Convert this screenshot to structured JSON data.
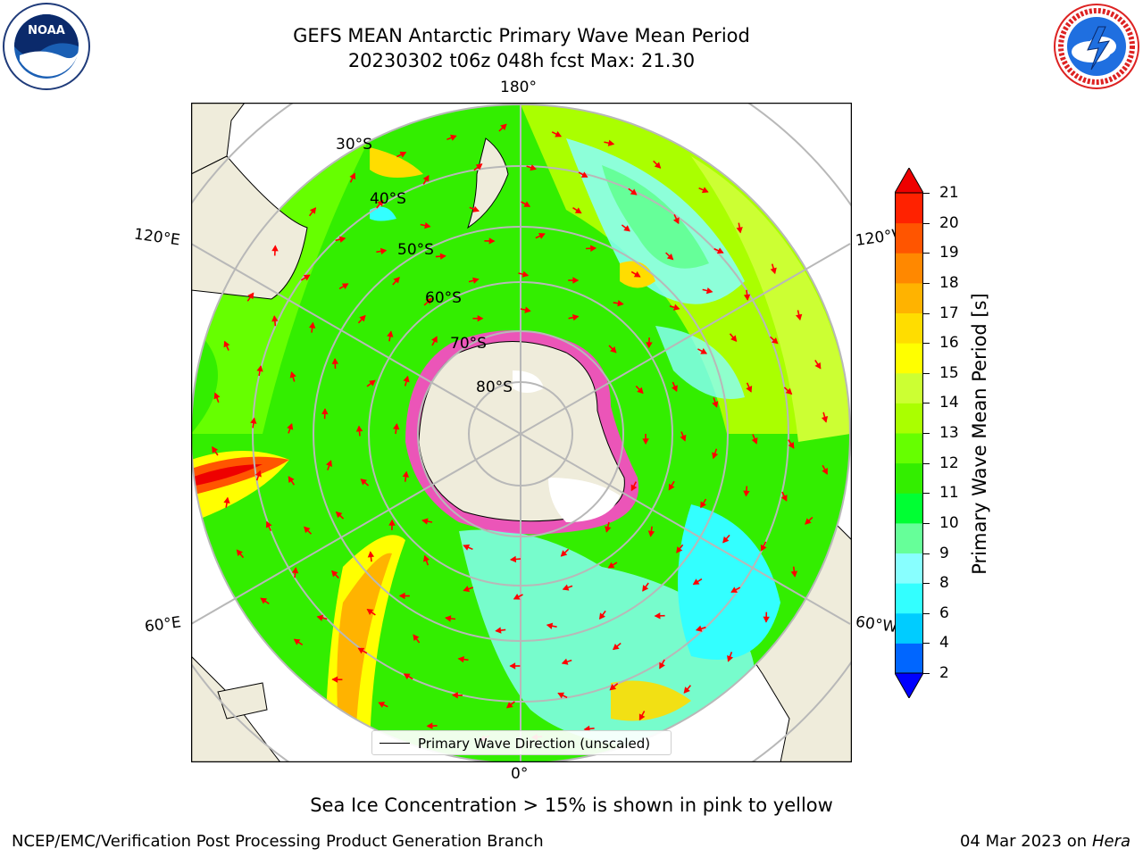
{
  "title": {
    "line1": "GEFS MEAN Antarctic Primary Wave Mean Period",
    "line2": "20230302 t06z 048h fcst   Max: 21.30"
  },
  "logos": {
    "left": {
      "name": "noaa-logo",
      "text": "NOAA",
      "ring_text": "NATIONAL OCEANIC AND ATMOSPHERIC ADMINISTRATION · U.S. DEPARTMENT OF COMMERCE"
    },
    "right": {
      "name": "nws-logo",
      "ring_text": "NATIONAL WEATHER SERVICE"
    }
  },
  "map": {
    "projection": "south-polar-stereographic",
    "longitude_labels": {
      "top": "180°",
      "bottom": "0°",
      "upper_left": "120°E",
      "upper_right": "120°W",
      "lower_left": "60°E",
      "lower_right": "60°W"
    },
    "latitude_labels": [
      "30°S",
      "40°S",
      "50°S",
      "60°S",
      "70°S",
      "80°S"
    ],
    "legend": {
      "label": "Primary Wave Direction (unscaled)"
    },
    "colors": {
      "land": "#efecdb",
      "sea_ice": "#ff44cc",
      "vector": "#ff0000",
      "grid": "#b8b8b8"
    }
  },
  "colorbar": {
    "label": "Primary Wave Mean Period [s]",
    "ticks": [
      "2",
      "4",
      "6",
      "8",
      "9",
      "10",
      "11",
      "12",
      "13",
      "14",
      "15",
      "16",
      "17",
      "18",
      "19",
      "20",
      "21"
    ],
    "colors": [
      "#0000ff",
      "#0066ff",
      "#00ccff",
      "#33ffff",
      "#88ffff",
      "#66ff99",
      "#00ff33",
      "#33ee00",
      "#66ff00",
      "#aaff00",
      "#ccff33",
      "#ffff00",
      "#ffdd00",
      "#ffb300",
      "#ff8800",
      "#ff5500",
      "#ff2200",
      "#ee0000"
    ]
  },
  "subtitle": "Sea Ice Concentration > 15% is shown in pink to yellow",
  "footer": {
    "left": "NCEP/EMC/Verification Post Processing Product Generation Branch",
    "right_date": "04 Mar 2023 on",
    "right_host": "Hera"
  }
}
